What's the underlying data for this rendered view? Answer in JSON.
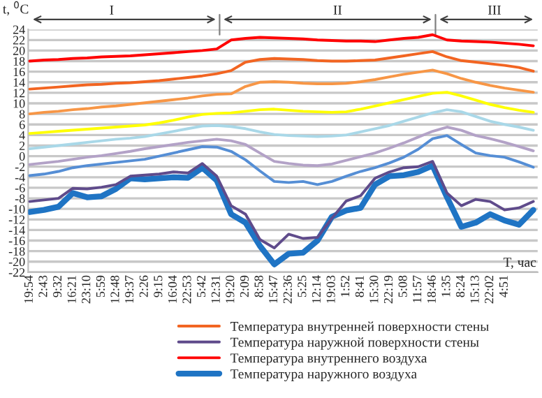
{
  "chart_data": {
    "type": "line",
    "xlabel": "T, час",
    "ylabel": "t, $^{0}$C",
    "categories": [
      "19:54",
      "2:43",
      "9:32",
      "16:21",
      "23:10",
      "5:59",
      "12:48",
      "19:37",
      "2:26",
      "9:15",
      "16:04",
      "22:53",
      "5:42",
      "12:31",
      "19:20",
      "2:09",
      "8:58",
      "15:47",
      "22:36",
      "5:25",
      "12:14",
      "19:03",
      "1:52",
      "8:41",
      "15:30",
      "22:19",
      "5:08",
      "11:57",
      "18:46",
      "1:35",
      "8:24",
      "15:13",
      "22:02",
      "4:51",
      null,
      null
    ],
    "series": [
      {
        "name": "Температура внутренней поверхности стены",
        "color": "#f26522",
        "values": [
          12.7,
          12.9,
          13.1,
          13.3,
          13.5,
          13.6,
          13.8,
          13.9,
          14.1,
          14.3,
          14.6,
          14.9,
          15.2,
          15.6,
          16.2,
          17.8,
          18.3,
          18.5,
          18.4,
          18.3,
          18.1,
          18,
          18,
          18.1,
          18.2,
          18.6,
          19,
          19.4,
          19.8,
          18.8,
          18.1,
          17.8,
          17.5,
          17.2,
          16.8,
          16.1
        ]
      },
      {
        "name": "Температура наружной поверхности стены",
        "color": "#5f4b8b",
        "values": [
          -8.6,
          -8.3,
          -8,
          -6.1,
          -6.2,
          -5.9,
          -5.4,
          -3.8,
          -3.6,
          -3.4,
          -3,
          -3.2,
          -1.4,
          -3.8,
          -9.4,
          -11,
          -15.8,
          -17.4,
          -14.8,
          -15.6,
          -15.4,
          -11.8,
          -8.5,
          -7.5,
          -4.2,
          -3,
          -2.2,
          -2,
          -1,
          -7,
          -9.4,
          -8.2,
          -8.6,
          -10.2,
          -9.8,
          -8.6
        ]
      },
      {
        "name": "Температура внутреннего воздуха",
        "color": "#ff0000",
        "values": [
          18,
          18.2,
          18.3,
          18.5,
          18.6,
          18.8,
          18.9,
          19,
          19.2,
          19.4,
          19.6,
          19.8,
          20,
          20.3,
          22,
          22.3,
          22.5,
          22.4,
          22.3,
          22.2,
          22,
          21.9,
          21.8,
          21.8,
          21.7,
          22,
          22.3,
          22.5,
          23,
          22,
          21.8,
          21.7,
          21.6,
          21.4,
          21.2,
          20.9
        ]
      },
      {
        "name": "Температура наружного воздуха",
        "color": "#1f74c4",
        "values": [
          -10.6,
          -10.2,
          -9.6,
          -7,
          -7.8,
          -7.6,
          -6.2,
          -4.2,
          -4.4,
          -4.2,
          -4,
          -4.1,
          -2.2,
          -4.6,
          -11,
          -12.6,
          -17,
          -20.5,
          -18.5,
          -18.3,
          -16,
          -11.5,
          -10.3,
          -9.8,
          -5.4,
          -3.8,
          -3.6,
          -3,
          -1.8,
          -7.8,
          -13.4,
          -12.6,
          -11,
          -12.2,
          -13,
          -10.2
        ]
      },
      {
        "color": "#f79646",
        "values": [
          8,
          8.3,
          8.5,
          8.8,
          9,
          9.3,
          9.5,
          9.8,
          10.1,
          10.4,
          10.7,
          11,
          11.4,
          11.7,
          11.8,
          13.2,
          14,
          14.1,
          14,
          13.8,
          13.7,
          13.7,
          13.8,
          14.1,
          14.5,
          15,
          15.5,
          15.9,
          16.3,
          15.6,
          14.7,
          14,
          13.4,
          12.9,
          12.5,
          12.1
        ]
      },
      {
        "color": "#ffff00",
        "values": [
          4.3,
          4.5,
          4.7,
          4.9,
          5.1,
          5.3,
          5.5,
          5.7,
          5.9,
          6.3,
          6.8,
          7.4,
          7.9,
          8.1,
          8.2,
          8.5,
          8.8,
          8.9,
          8.7,
          8.5,
          8.4,
          8.3,
          8.4,
          8.9,
          9.5,
          10.1,
          10.7,
          11.3,
          11.9,
          12.1,
          11.4,
          10.6,
          9.8,
          9.2,
          8.7,
          8.3
        ]
      },
      {
        "color": "#a9d8e8",
        "values": [
          1.4,
          1.7,
          2,
          2.3,
          2.6,
          2.9,
          3.2,
          3.4,
          3.7,
          4.2,
          4.7,
          5.2,
          5.7,
          5.8,
          5.6,
          5.2,
          4.6,
          4.1,
          3.9,
          3.8,
          3.7,
          3.8,
          4,
          4.6,
          5.2,
          5.8,
          6.6,
          7.4,
          8.2,
          8.8,
          8.4,
          7.5,
          6.6,
          6,
          5.5,
          4.9
        ]
      },
      {
        "color": "#b3a2c7",
        "values": [
          -1.6,
          -1.3,
          -1,
          -0.6,
          -0.2,
          0.1,
          0.5,
          0.9,
          1.4,
          1.8,
          2.2,
          2.6,
          2.9,
          3.2,
          2.9,
          2.2,
          0.6,
          -1,
          -1.4,
          -1.7,
          -1.8,
          -1.5,
          -0.8,
          -0.1,
          0.6,
          1.5,
          2.5,
          3.6,
          4.7,
          5.5,
          4.9,
          3.9,
          3.3,
          2.6,
          1.8,
          1
        ]
      },
      {
        "color": "#558ed5",
        "values": [
          -3.7,
          -3.4,
          -2.9,
          -2.2,
          -1.8,
          -1.5,
          -1.2,
          -0.9,
          -0.6,
          0,
          0.6,
          1.2,
          1.8,
          1.7,
          0.9,
          -0.7,
          -2.8,
          -4.8,
          -5,
          -4.8,
          -5.4,
          -4.8,
          -3.8,
          -2.9,
          -2.2,
          -1.3,
          -0.2,
          1.3,
          3.3,
          3.9,
          2.2,
          0.6,
          0.1,
          -0.2,
          -1.1,
          -2.1
        ]
      }
    ],
    "ylim": [
      -22,
      24
    ],
    "yticks": [
      -22,
      -20,
      -18,
      -16,
      -14,
      -12,
      -10,
      -8,
      -6,
      -4,
      -2,
      0,
      2,
      4,
      6,
      8,
      10,
      12,
      14,
      16,
      18,
      20,
      22,
      24
    ],
    "grid": "y",
    "legend": "bottom",
    "marker": "none",
    "line_style": "solid",
    "annotations": [
      "I",
      "II",
      "III"
    ]
  }
}
